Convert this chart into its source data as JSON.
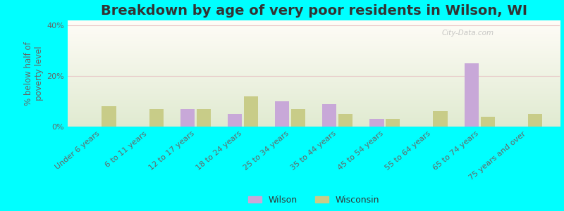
{
  "title": "Breakdown by age of very poor residents in Wilson, WI",
  "ylabel": "% below half of\npoverty level",
  "categories": [
    "Under 6 years",
    "6 to 11 years",
    "12 to 17 years",
    "18 to 24 years",
    "25 to 34 years",
    "35 to 44 years",
    "45 to 54 years",
    "55 to 64 years",
    "65 to 74 years",
    "75 years and over"
  ],
  "wilson_values": [
    0,
    0,
    7,
    5,
    10,
    9,
    3,
    0,
    25,
    0
  ],
  "wisconsin_values": [
    8,
    7,
    7,
    12,
    7,
    5,
    3,
    6,
    4,
    5
  ],
  "wilson_color": "#c8a8d8",
  "wisconsin_color": "#c8cc88",
  "ylim": [
    0,
    42
  ],
  "yticks": [
    0,
    20,
    40
  ],
  "ytick_labels": [
    "0%",
    "20%",
    "40%"
  ],
  "background_color": "#00ffff",
  "bar_width": 0.3,
  "title_fontsize": 14,
  "axis_label_fontsize": 8.5,
  "tick_fontsize": 8,
  "legend_wilson": "Wilson",
  "legend_wisconsin": "Wisconsin",
  "grid_color": "#e8c8c8",
  "watermark_text": "City-Data.com"
}
